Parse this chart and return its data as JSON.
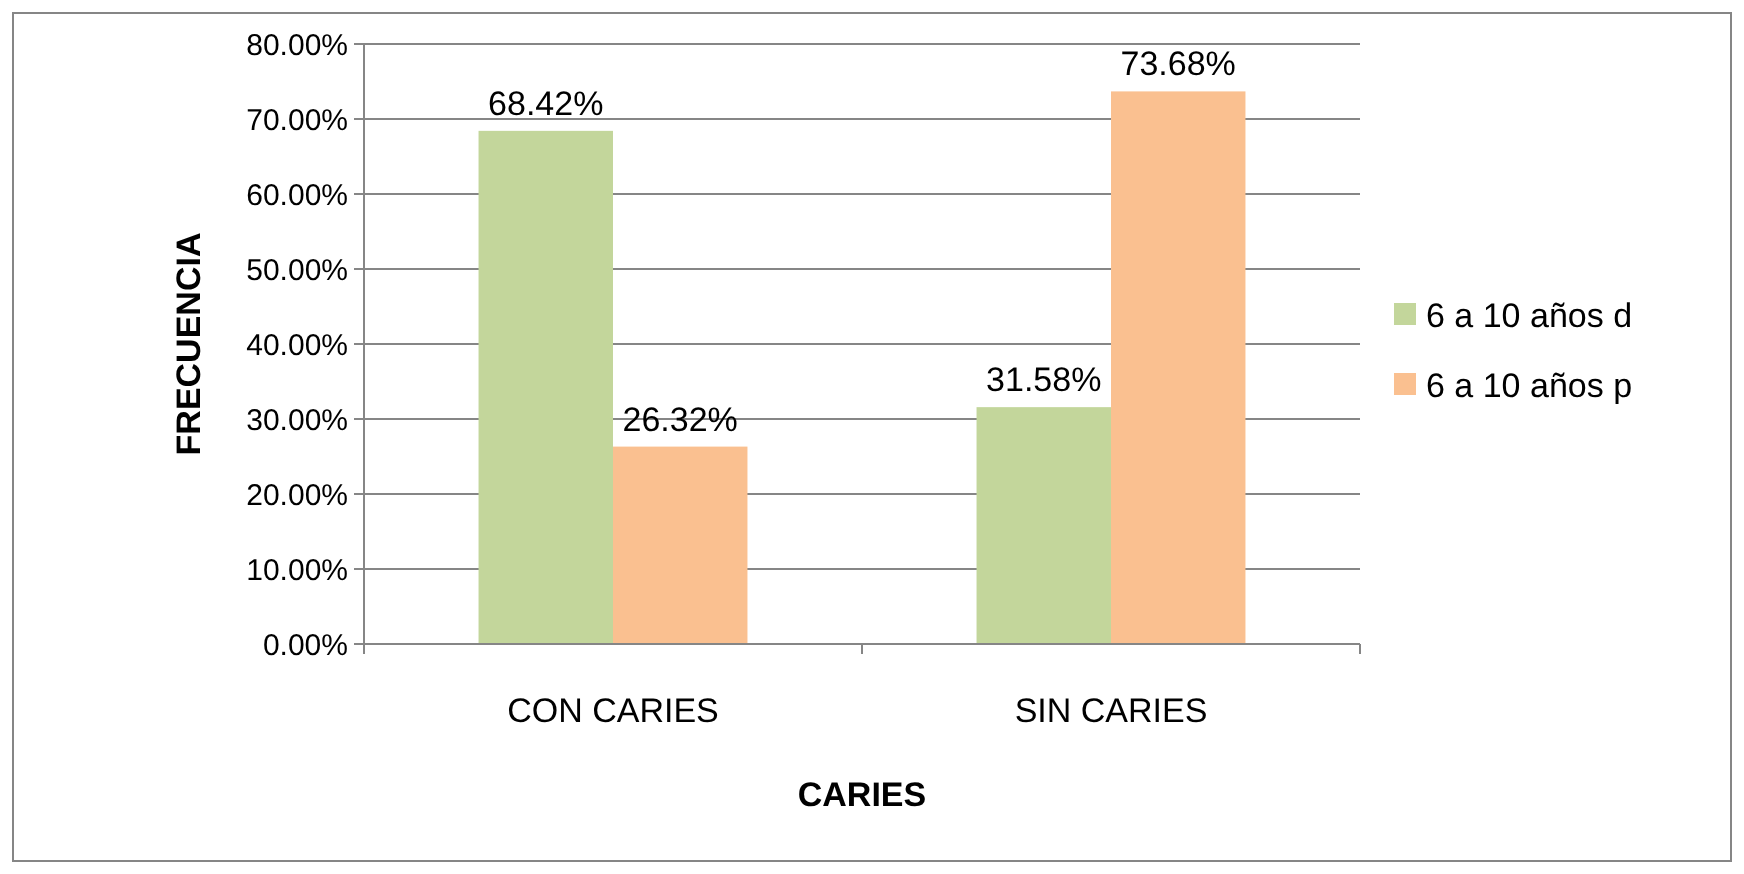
{
  "chart_data": {
    "type": "bar",
    "xlabel": "CARIES",
    "ylabel": "FRECUENCIA",
    "categories": [
      "CON CARIES",
      "SIN CARIES"
    ],
    "series": [
      {
        "name": "6 a 10 años d",
        "color": "#c3d69b",
        "values": [
          68.42,
          31.58
        ],
        "value_labels": [
          "68.42%",
          "31.58%"
        ]
      },
      {
        "name": "6 a 10 años p",
        "color": "#fac090",
        "values": [
          26.32,
          73.68
        ],
        "value_labels": [
          "26.32%",
          "73.68%"
        ]
      }
    ],
    "ylim": [
      0,
      80
    ],
    "yticks": [
      {
        "value": 0,
        "label": "0.00%"
      },
      {
        "value": 10,
        "label": "10.00%"
      },
      {
        "value": 20,
        "label": "20.00%"
      },
      {
        "value": 30,
        "label": "30.00%"
      },
      {
        "value": 40,
        "label": "40.00%"
      },
      {
        "value": 50,
        "label": "50.00%"
      },
      {
        "value": 60,
        "label": "60.00%"
      },
      {
        "value": 70,
        "label": "70.00%"
      },
      {
        "value": 80,
        "label": "80.00%"
      }
    ],
    "grid": "y",
    "legend": "right"
  }
}
